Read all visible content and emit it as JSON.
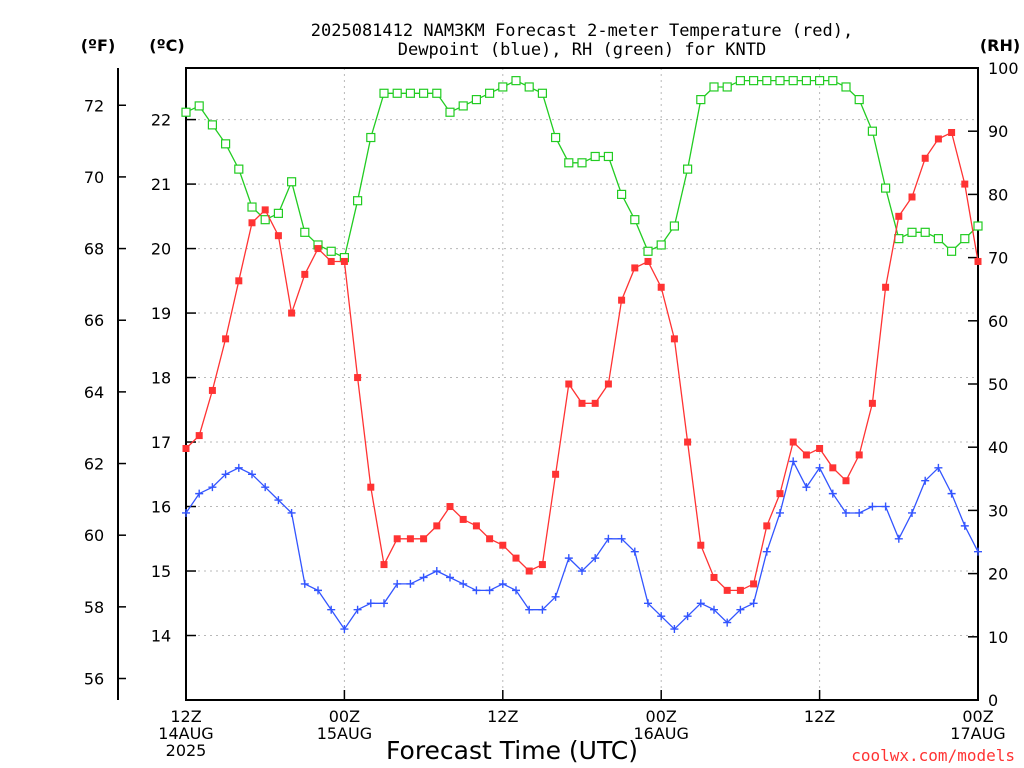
{
  "title_line1": "2025081412 NAM3KM Forecast 2-meter Temperature (red),",
  "title_line2": "Dewpoint (blue), RH (green) for KNTD",
  "xlabel": "Forecast Time (UTC)",
  "credit": "coolwx.com/models",
  "unit_f": "(ºF)",
  "unit_c": "(ºC)",
  "unit_rh": "(RH)",
  "x_tick_labels": [
    {
      "hour": 0,
      "lines": [
        "12Z",
        "14AUG",
        "2025"
      ]
    },
    {
      "hour": 12,
      "lines": [
        "00Z",
        "15AUG"
      ]
    },
    {
      "hour": 24,
      "lines": [
        "12Z"
      ]
    },
    {
      "hour": 36,
      "lines": [
        "00Z",
        "16AUG"
      ]
    },
    {
      "hour": 48,
      "lines": [
        "12Z"
      ]
    },
    {
      "hour": 60,
      "lines": [
        "00Z",
        "17AUG"
      ]
    }
  ],
  "colors": {
    "temperature": "#ff3333",
    "dewpoint": "#3355ff",
    "rh": "#22cc22",
    "credit": "#ff3333"
  },
  "chart_data": {
    "type": "line",
    "x_unit": "forecast hour from 12Z 14AUG 2025",
    "xlim": [
      0,
      60
    ],
    "y_celsius_ticks": [
      14,
      15,
      16,
      17,
      18,
      19,
      20,
      21,
      22
    ],
    "y_fahrenheit_ticks": [
      56,
      58,
      60,
      62,
      64,
      66,
      68,
      70,
      72
    ],
    "y_rh_ticks": [
      0,
      10,
      20,
      30,
      40,
      50,
      60,
      70,
      80,
      90,
      100
    ],
    "ylim_celsius": [
      13.0,
      22.8
    ],
    "ylim_rh": [
      0,
      100
    ],
    "grid": true,
    "x": [
      0,
      1,
      2,
      3,
      4,
      5,
      6,
      7,
      8,
      9,
      10,
      11,
      12,
      13,
      14,
      15,
      16,
      17,
      18,
      19,
      20,
      21,
      22,
      23,
      24,
      25,
      26,
      27,
      28,
      29,
      30,
      31,
      32,
      33,
      34,
      35,
      36,
      37,
      38,
      39,
      40,
      41,
      42,
      43,
      44,
      45,
      46,
      47,
      48,
      49,
      50,
      51,
      52,
      53,
      54,
      55,
      56,
      57,
      58,
      59,
      60
    ],
    "series": [
      {
        "key": "temperature",
        "unit": "°C",
        "marker": "filled-square",
        "values": [
          16.9,
          17.1,
          17.8,
          18.6,
          19.5,
          20.4,
          20.6,
          20.2,
          19.0,
          19.6,
          20.0,
          19.8,
          19.8,
          18.0,
          16.3,
          15.1,
          15.5,
          15.5,
          15.5,
          15.7,
          16.0,
          15.8,
          15.7,
          15.5,
          15.4,
          15.2,
          15.0,
          15.1,
          16.5,
          17.9,
          17.6,
          17.6,
          17.9,
          19.2,
          19.7,
          19.8,
          19.4,
          18.6,
          17.0,
          15.4,
          14.9,
          14.7,
          14.7,
          14.8,
          15.7,
          16.2,
          17.0,
          16.8,
          16.9,
          16.6,
          16.4,
          16.8,
          17.6,
          19.4,
          20.5,
          20.8,
          21.4,
          21.7,
          21.8,
          21.0,
          19.8
        ]
      },
      {
        "key": "dewpoint",
        "unit": "°C",
        "marker": "plus",
        "values": [
          15.9,
          16.2,
          16.3,
          16.5,
          16.6,
          16.5,
          16.3,
          16.1,
          15.9,
          14.8,
          14.7,
          14.4,
          14.1,
          14.4,
          14.5,
          14.5,
          14.8,
          14.8,
          14.9,
          15.0,
          14.9,
          14.8,
          14.7,
          14.7,
          14.8,
          14.7,
          14.4,
          14.4,
          14.6,
          15.2,
          15.0,
          15.2,
          15.5,
          15.5,
          15.3,
          14.5,
          14.3,
          14.1,
          14.3,
          14.5,
          14.4,
          14.2,
          14.4,
          14.5,
          15.3,
          15.9,
          16.7,
          16.3,
          16.6,
          16.2,
          15.9,
          15.9,
          16.0,
          16.0,
          15.5,
          15.9,
          16.4,
          16.6,
          16.2,
          15.7,
          15.3
        ]
      },
      {
        "key": "rh",
        "unit": "%",
        "marker": "open-square",
        "values": [
          93,
          94,
          91,
          88,
          84,
          78,
          76,
          77,
          82,
          74,
          72,
          71,
          70,
          79,
          89,
          96,
          96,
          96,
          96,
          96,
          93,
          94,
          95,
          96,
          97,
          98,
          97,
          96,
          89,
          85,
          85,
          86,
          86,
          80,
          76,
          71,
          72,
          75,
          84,
          95,
          97,
          97,
          98,
          98,
          98,
          98,
          98,
          98,
          98,
          98,
          97,
          95,
          90,
          81,
          73,
          74,
          74,
          73,
          71,
          73,
          75
        ]
      }
    ]
  }
}
